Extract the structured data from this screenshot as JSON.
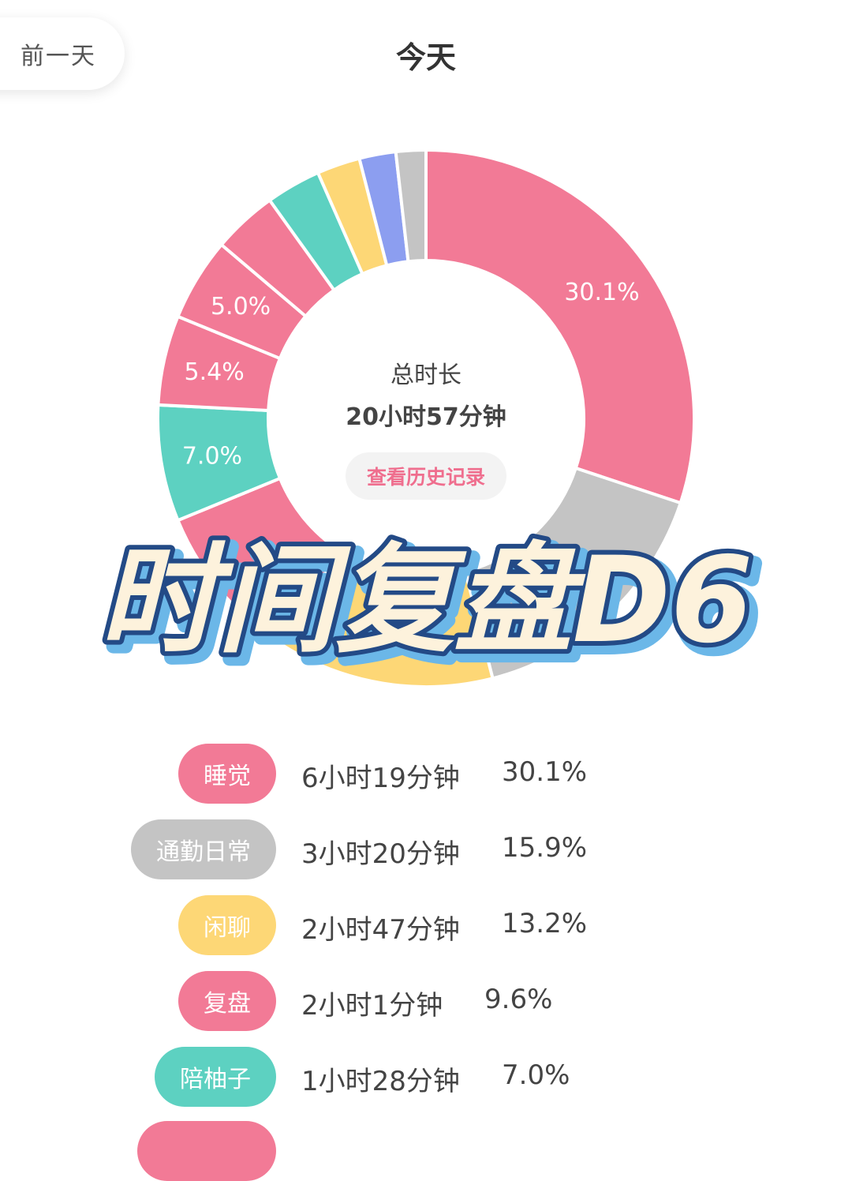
{
  "header": {
    "prev_day_label": "前一天",
    "title": "今天"
  },
  "summary": {
    "total_label": "总时长",
    "total_value": "20小时57分钟",
    "history_button": "查看历史记录"
  },
  "overlay": {
    "title": "时间复盘D6"
  },
  "chart_data": {
    "type": "pie",
    "style": "donut",
    "start_angle_degrees": 0,
    "direction": "clockwise",
    "slices": [
      {
        "value": 30.1,
        "label": "30.1%",
        "color": "#f27a96"
      },
      {
        "value": 15.9,
        "label": "",
        "color": "#c4c4c4"
      },
      {
        "value": 13.2,
        "label": "",
        "color": "#fdd776"
      },
      {
        "value": 9.6,
        "label": "",
        "color": "#f27a96"
      },
      {
        "value": 7.0,
        "label": "7.0%",
        "color": "#5dd1c1"
      },
      {
        "value": 5.4,
        "label": "5.4%",
        "color": "#f27a96"
      },
      {
        "value": 5.0,
        "label": "5.0%",
        "color": "#f27a96"
      },
      {
        "value": 3.9,
        "label": "",
        "color": "#f27a96"
      },
      {
        "value": 3.3,
        "label": "",
        "color": "#5dd1c1"
      },
      {
        "value": 2.6,
        "label": "",
        "color": "#fdd776"
      },
      {
        "value": 2.2,
        "label": "",
        "color": "#8c9ef0"
      },
      {
        "value": 1.8,
        "label": "",
        "color": "#c4c4c4"
      }
    ]
  },
  "legend": [
    {
      "name": "睡觉",
      "time": "6小时19分钟",
      "percent": "30.1%",
      "color": "#f27a96"
    },
    {
      "name": "通勤日常",
      "time": "3小时20分钟",
      "percent": "15.9%",
      "color": "#c4c4c4"
    },
    {
      "name": "闲聊",
      "time": "2小时47分钟",
      "percent": "13.2%",
      "color": "#fdd776"
    },
    {
      "name": "复盘",
      "time": "2小时1分钟",
      "percent": "9.6%",
      "color": "#f27a96"
    },
    {
      "name": "陪柚子",
      "time": "1小时28分钟",
      "percent": "7.0%",
      "color": "#5dd1c1"
    },
    {
      "name": "",
      "time": "",
      "percent": "",
      "color": "#f27a96"
    }
  ]
}
